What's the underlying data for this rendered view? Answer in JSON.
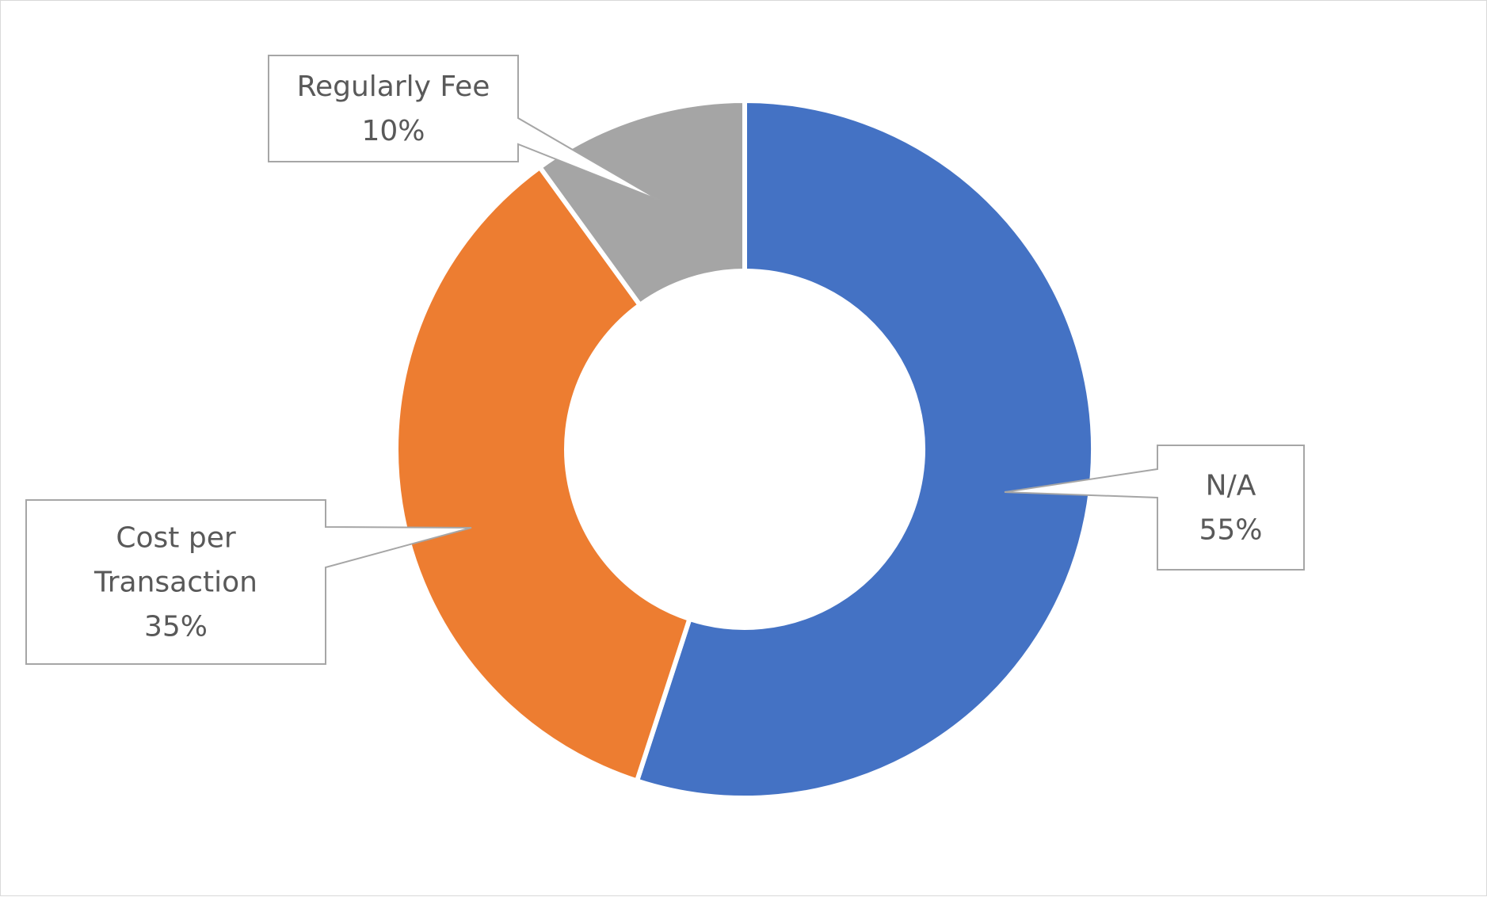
{
  "chart_data": {
    "type": "pie",
    "style": "donut",
    "title": "",
    "legend": "none",
    "categories": [
      "N/A",
      "Cost per Transaction",
      "Regularly Fee"
    ],
    "values": [
      55,
      35,
      10
    ],
    "value_labels": [
      "55%",
      "35%",
      "10%"
    ],
    "colors": [
      "#4472C4",
      "#ED7D31",
      "#A5A5A5"
    ],
    "label_lines": [
      [
        "N/A"
      ],
      [
        "Cost per",
        "Transaction"
      ],
      [
        "Regularly Fee"
      ]
    ],
    "start_angle_deg": 0,
    "direction": "clockwise"
  }
}
